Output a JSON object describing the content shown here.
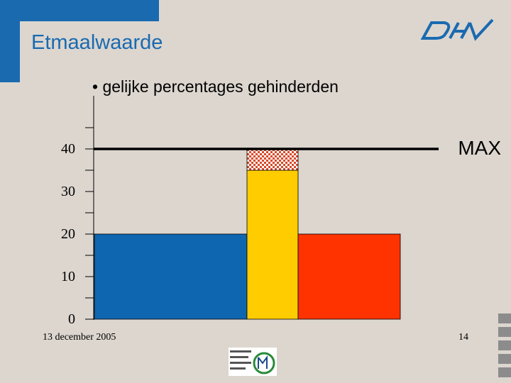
{
  "slide": {
    "title": "Etmaalwaarde",
    "bullet": "• gelijke percentages gehinderden",
    "date": "13 december 2005",
    "page_number": "14"
  },
  "colors": {
    "brand_blue": "#1a6ab0",
    "bar_blue": "#0f66b0",
    "bar_yellow": "#ffcc00",
    "bar_red": "#ff3300",
    "hatch": "#d94a2a",
    "background": "#dcd6cf"
  },
  "chart_data": {
    "type": "bar",
    "categories": [
      "",
      "",
      ""
    ],
    "values": [
      20,
      35,
      20
    ],
    "overflow": [
      {
        "index": 1,
        "from": 35,
        "to": 40
      }
    ],
    "ylim": [
      0,
      40
    ],
    "ticks": [
      0,
      10,
      20,
      30,
      40
    ],
    "minor_ticks": [
      5,
      15,
      25,
      35,
      45
    ],
    "reference_line": {
      "value": 40,
      "label": "MAX"
    },
    "xlabel": "",
    "ylabel": "",
    "grid": false
  }
}
